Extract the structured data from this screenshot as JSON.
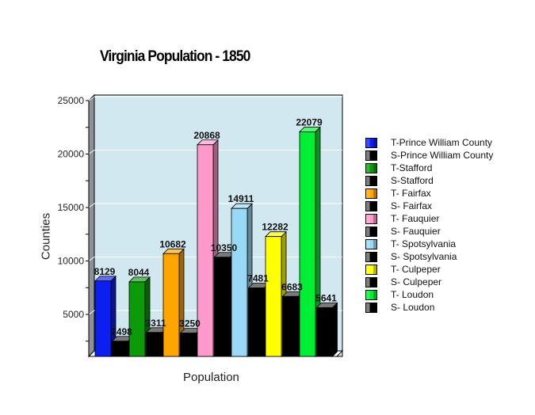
{
  "chart_data": {
    "type": "bar",
    "title": "Virginia Population - 1850",
    "xlabel": "Population",
    "ylabel": "Counties",
    "ylim": [
      1000,
      25000
    ],
    "yticks": [
      5000,
      10000,
      15000,
      20000,
      25000
    ],
    "grid": true,
    "legend_position": "right",
    "style": "3d",
    "categories": [
      "T-Prince William County",
      "S-Prince William County",
      "T-Stafford",
      "S-Stafford",
      "T- Fairfax",
      "S- Fairfax",
      "T- Fauquier",
      "S- Fauquier",
      "T- Spotsylvania",
      "S- Spotsylvania",
      "T- Culpeper",
      "S- Culpeper",
      "T- Loudon",
      "S- Loudon"
    ],
    "values": [
      8129,
      2498,
      8044,
      3311,
      10682,
      3250,
      20868,
      10350,
      14911,
      7481,
      12282,
      6683,
      22079,
      5641
    ],
    "colors": [
      "#0b1ff0",
      "#000000",
      "#0a9a0a",
      "#000000",
      "#ffa500",
      "#000000",
      "#ff99cc",
      "#000000",
      "#99d9f5",
      "#000000",
      "#ffff00",
      "#000000",
      "#00ee33",
      "#000000"
    ]
  },
  "title": "Virginia Population - 1850",
  "axes": {
    "xlabel": "Population",
    "ylabel": "Counties",
    "ytick_labels": [
      "5000",
      "10000",
      "15000",
      "20000",
      "25000"
    ]
  },
  "legend": [
    {
      "label": "T-Prince William County",
      "color": "#0b1ff0"
    },
    {
      "label": "S-Prince William County",
      "color": "#000000"
    },
    {
      "label": "T-Stafford",
      "color": "#0a9a0a"
    },
    {
      "label": "S-Stafford",
      "color": "#000000"
    },
    {
      "label": "T- Fairfax",
      "color": "#ffa500"
    },
    {
      "label": "S- Fairfax",
      "color": "#000000"
    },
    {
      "label": "T- Fauquier",
      "color": "#ff99cc"
    },
    {
      "label": "S- Fauquier",
      "color": "#000000"
    },
    {
      "label": "T- Spotsylvania",
      "color": "#99d9f5"
    },
    {
      "label": "S- Spotsylvania",
      "color": "#000000"
    },
    {
      "label": "T- Culpeper",
      "color": "#ffff00"
    },
    {
      "label": "S- Culpeper",
      "color": "#000000"
    },
    {
      "label": "T- Loudon",
      "color": "#00ee33"
    },
    {
      "label": "S- Loudon",
      "color": "#000000"
    }
  ],
  "colors": {
    "plot_background": "#d2e8f0",
    "left_wall": "#8c9296",
    "gridline": "#ffffff"
  }
}
